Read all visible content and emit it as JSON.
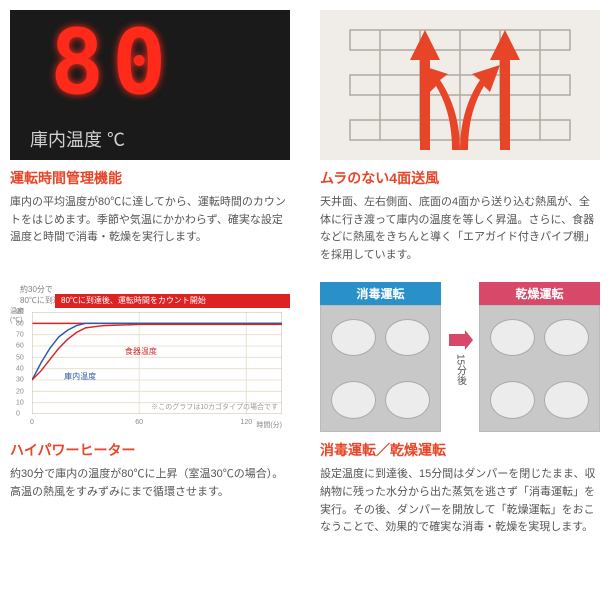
{
  "cells": {
    "runtime": {
      "title": "運転時間管理機能",
      "desc": "庫内の平均温度が80℃に達してから、運転時間のカウントをはじめます。季節や気温にかかわらず、確実な設定温度と時間で消毒・乾燥を実行します。",
      "led_value": "80",
      "led_label": "庫内温度 ℃"
    },
    "airflow": {
      "title": "ムラのない4面送風",
      "desc": "天井面、左右側面、底面の4面から送り込む熱風が、全体に行き渡って庫内の温度を等しく昇温。さらに、食器などに熱風をきちんと導く「エアガイド付きパイプ棚」を採用しています。"
    },
    "heater": {
      "title": "ハイパワーヒーター",
      "desc": "約30分で庫内の温度が80℃に上昇（室温30℃の場合）。高温の熱風をすみずみにまで循環させます。",
      "chart": {
        "type": "line",
        "top_label": "約30分で\n80℃に到達。",
        "banner": "80℃に到達後、運転時間をカウント開始",
        "ylabel": "温度\n(℃)",
        "xlabel": "時間(分)",
        "ylim": [
          0,
          90
        ],
        "ytick_step": 10,
        "xlim": [
          0,
          140
        ],
        "xticks": [
          0,
          60,
          120
        ],
        "grid_color": "#e8dcc8",
        "highlight_y": 80,
        "note": "※このグラフは10カゴタイプの場合です",
        "series": [
          {
            "name": "庫内温度",
            "color": "#2a5aa8",
            "label_pos": [
              18,
              38
            ],
            "points": [
              [
                0,
                30
              ],
              [
                5,
                45
              ],
              [
                10,
                58
              ],
              [
                15,
                68
              ],
              [
                20,
                74
              ],
              [
                25,
                78
              ],
              [
                30,
                80
              ],
              [
                40,
                80
              ],
              [
                60,
                80
              ],
              [
                90,
                80
              ],
              [
                120,
                80
              ],
              [
                140,
                80
              ]
            ]
          },
          {
            "name": "食器温度",
            "color": "#d22828",
            "label_pos": [
              52,
              60
            ],
            "points": [
              [
                0,
                30
              ],
              [
                5,
                38
              ],
              [
                10,
                48
              ],
              [
                15,
                58
              ],
              [
                20,
                66
              ],
              [
                25,
                72
              ],
              [
                30,
                76
              ],
              [
                40,
                78
              ],
              [
                60,
                79
              ],
              [
                90,
                79
              ],
              [
                120,
                79
              ],
              [
                140,
                79
              ]
            ]
          }
        ]
      }
    },
    "operation": {
      "title": "消毒運転／乾燥運転",
      "desc": "設定温度に到達後、15分間はダンパーを閉じたまま、収納物に残った水分から出た蒸気を逃さず「消毒運転」を実行。その後、ダンパーを開放して「乾燥運転」をおこなうことで、効果的で確実な消毒・乾燥を実現します。",
      "left_label": "消毒運転",
      "right_label": "乾燥運転",
      "arrow_text": "15分後",
      "left_color": "#2a90c8",
      "right_color": "#d84868"
    }
  }
}
